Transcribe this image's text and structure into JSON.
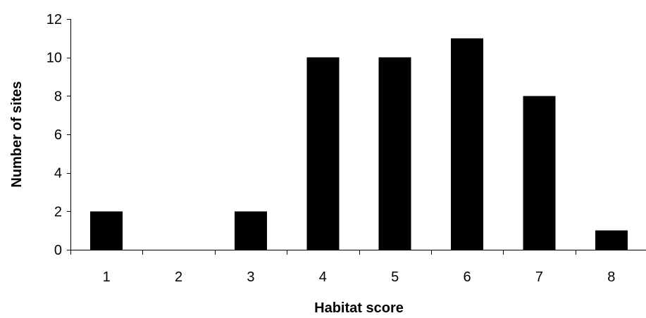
{
  "chart_data": {
    "type": "bar",
    "categories": [
      "1",
      "2",
      "3",
      "4",
      "5",
      "6",
      "7",
      "8"
    ],
    "values": [
      2,
      0,
      2,
      10,
      10,
      11,
      8,
      1
    ],
    "title": "",
    "xlabel": "Habitat score",
    "ylabel": "Number of sites",
    "ylim": [
      0,
      12
    ],
    "yticks": [
      "0",
      "2",
      "4",
      "6",
      "8",
      "10",
      "12"
    ],
    "grid": false,
    "bar_color": "#000000"
  }
}
